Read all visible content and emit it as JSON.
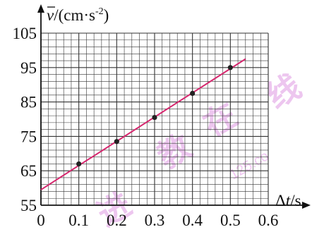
{
  "chart_data": {
    "type": "scatter",
    "ylabel_parts": {
      "pre": "v",
      "mid": "/(cm·s",
      "sup": "-2",
      "post": ")"
    },
    "xlabel_parts": {
      "pre": "Δ",
      "var": "t",
      "post": "/s"
    },
    "x_ticks": [
      "0",
      "0.1",
      "0.2",
      "0.3",
      "0.4",
      "0.5",
      "0.6"
    ],
    "y_ticks": [
      "55",
      "65",
      "75",
      "85",
      "95",
      "105"
    ],
    "xlim": [
      0,
      0.6
    ],
    "ylim": [
      55,
      105
    ],
    "grid": true,
    "points": [
      {
        "x": 0.1,
        "y": 67
      },
      {
        "x": 0.2,
        "y": 73.5
      },
      {
        "x": 0.3,
        "y": 80.5
      },
      {
        "x": 0.4,
        "y": 87.5
      },
      {
        "x": 0.5,
        "y": 95
      }
    ],
    "fit_line": {
      "x0": 0.0,
      "y0": 59.5,
      "x1": 0.54,
      "y1": 97.5
    },
    "colors": {
      "fit_line": "#d6276e",
      "points": "#222222",
      "grid": "#333333"
    }
  },
  "watermark": {
    "chars": [
      "进",
      "教",
      "在",
      "线"
    ],
    "domain": "125.co"
  }
}
